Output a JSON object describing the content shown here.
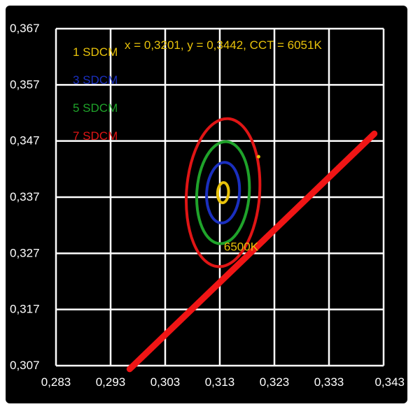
{
  "readout": {
    "text": "x = 0,3201, y = 0,3442, CCT = 6051K",
    "color": "#e8c20a"
  },
  "legend": [
    {
      "label": "1 SDCM",
      "color": "#e8c20a"
    },
    {
      "label": "3 SDCM",
      "color": "#1a2fbf"
    },
    {
      "label": "5 SDCM",
      "color": "#1fa32a"
    },
    {
      "label": "7 SDCM",
      "color": "#e01515"
    }
  ],
  "colors": {
    "background": "#000000",
    "grid": "#ffffff",
    "axis_text": "#ffffff",
    "planck_locus": "#f01515"
  },
  "chart_data": {
    "type": "line",
    "title": "",
    "xlabel": "",
    "ylabel": "",
    "xlim": [
      0.283,
      0.343
    ],
    "ylim": [
      0.307,
      0.367
    ],
    "grid": true,
    "legend_position": "top-left",
    "x_ticks": [
      "0,283",
      "0,293",
      "0,303",
      "0,313",
      "0,323",
      "0,333",
      "0,343"
    ],
    "y_ticks": [
      "0,307",
      "0,317",
      "0,327",
      "0,337",
      "0,347",
      "0,357",
      "0,367"
    ],
    "x_tick_values": [
      0.283,
      0.293,
      0.303,
      0.313,
      0.323,
      0.333,
      0.343
    ],
    "y_tick_values": [
      0.307,
      0.317,
      0.327,
      0.337,
      0.347,
      0.357,
      0.367
    ],
    "ellipse_center": {
      "x": 0.3136,
      "y": 0.3378
    },
    "ellipse_rotation_deg": 58,
    "ellipses": [
      {
        "label": "1 SDCM",
        "a": 0.0018,
        "b": 0.001
      },
      {
        "label": "3 SDCM",
        "a": 0.0054,
        "b": 0.003
      },
      {
        "label": "5 SDCM",
        "a": 0.0091,
        "b": 0.0048
      },
      {
        "label": "7 SDCM",
        "a": 0.0132,
        "b": 0.0067
      }
    ],
    "planck_locus": {
      "x": [
        0.2965,
        0.3413
      ],
      "y": [
        0.3064,
        0.3483
      ]
    },
    "reference_point": {
      "label": "6500K",
      "x": 0.3135,
      "y": 0.3282
    },
    "measured_point": {
      "x": 0.3201,
      "y": 0.3442
    }
  }
}
